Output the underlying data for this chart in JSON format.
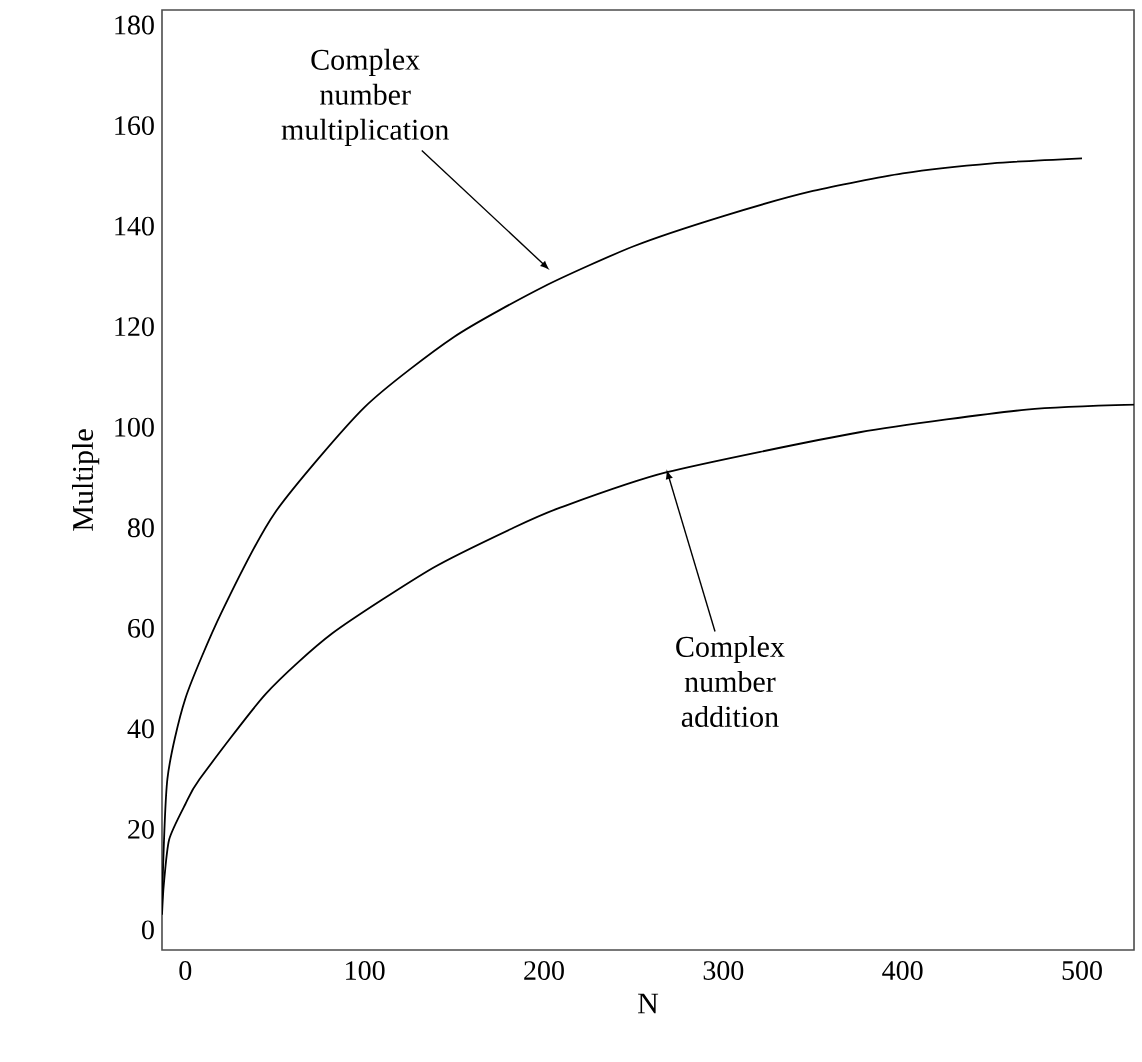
{
  "chart_data": {
    "type": "line",
    "xlabel": "N",
    "ylabel": "Multiple",
    "xlim": [
      -13,
      529
    ],
    "ylim": [
      -4,
      183
    ],
    "xticks": [
      0,
      100,
      200,
      300,
      400,
      500
    ],
    "yticks": [
      0,
      20,
      40,
      60,
      80,
      100,
      120,
      140,
      160,
      180
    ],
    "grid": false,
    "line_style": "solid",
    "series": [
      {
        "color": "#000000",
        "x": [
          -13,
          -10,
          0,
          20,
          50,
          100,
          150,
          200,
          250,
          300,
          350,
          400,
          450,
          500
        ],
        "values": [
          5,
          30,
          46,
          63,
          83,
          104,
          118,
          128,
          136,
          142,
          147,
          150.5,
          152.5,
          153.5
        ]
      },
      {
        "color": "#000000",
        "x": [
          -13,
          -12,
          -9,
          0,
          8,
          45,
          82,
          138,
          183,
          209,
          268,
          376,
          469,
          529
        ],
        "values": [
          3,
          9,
          18,
          25,
          30,
          47,
          59,
          72,
          80,
          84,
          91,
          99,
          103.5,
          104.5
        ]
      }
    ],
    "annotations": [
      {
        "text": "Complex number multiplication",
        "x": 204,
        "y": 131
      },
      {
        "text": "Complex number addition",
        "x": 268,
        "y": 92
      }
    ]
  }
}
